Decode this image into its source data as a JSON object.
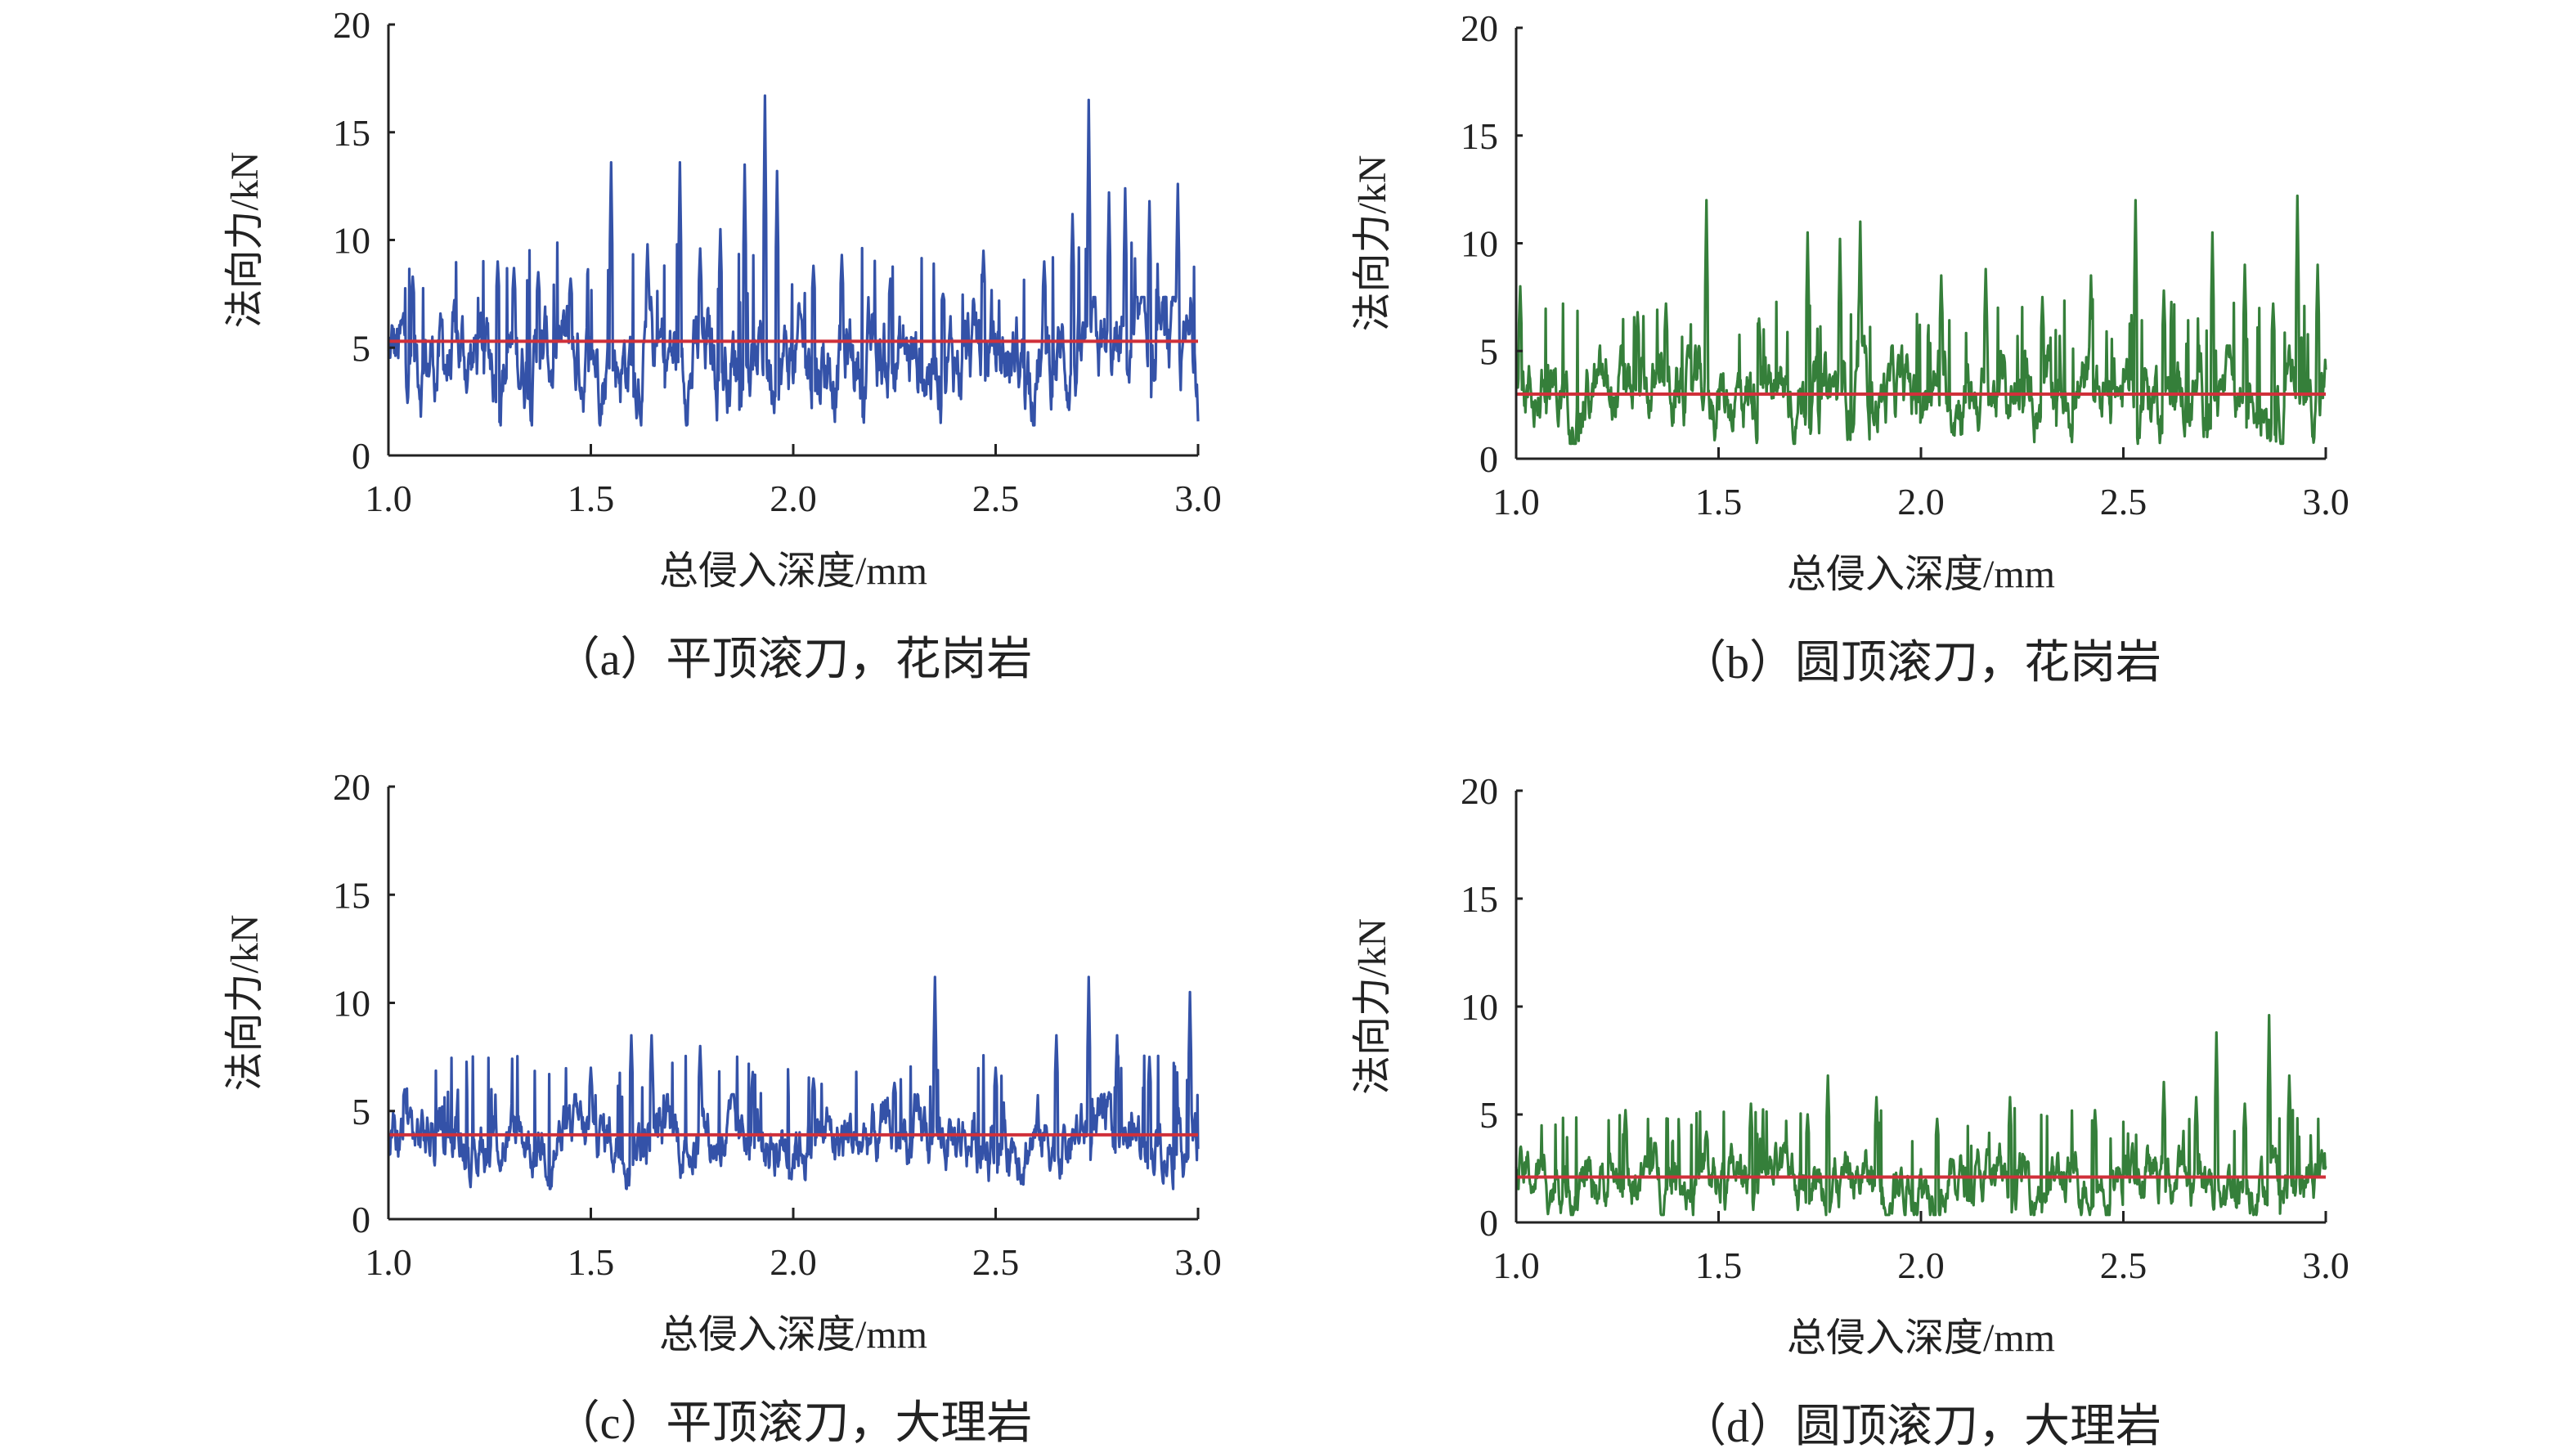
{
  "colors": {
    "blue": "#3452a8",
    "green": "#357f3a",
    "mean_line": "#d0303a",
    "axis": "#222222"
  },
  "chart_data": [
    {
      "type": "line",
      "caption": "（a）平顶滚刀，花岗岩",
      "xlabel": "总侵入深度/mm",
      "ylabel": "法向力/kN",
      "xlim": [
        1.0,
        3.0
      ],
      "ylim": [
        0,
        20
      ],
      "xticks": [
        "1.0",
        "1.5",
        "2.0",
        "2.5",
        "3.0"
      ],
      "yticks": [
        "0",
        "5",
        "10",
        "15",
        "20"
      ],
      "series_color": "blue",
      "mean": 5.3,
      "baseline_range": [
        2.0,
        7.0
      ],
      "peaks": [
        [
          1.06,
          8.3
        ],
        [
          1.27,
          9.0
        ],
        [
          1.31,
          8.7
        ],
        [
          1.37,
          8.5
        ],
        [
          1.45,
          8.2
        ],
        [
          1.55,
          13.6
        ],
        [
          1.64,
          9.8
        ],
        [
          1.72,
          13.6
        ],
        [
          1.77,
          9.6
        ],
        [
          1.82,
          10.5
        ],
        [
          1.88,
          13.5
        ],
        [
          1.93,
          16.7
        ],
        [
          1.96,
          13.2
        ],
        [
          2.05,
          8.8
        ],
        [
          2.12,
          9.3
        ],
        [
          2.24,
          8.2
        ],
        [
          2.37,
          7.5
        ],
        [
          2.47,
          9.5
        ],
        [
          2.62,
          9.0
        ],
        [
          2.69,
          11.2
        ],
        [
          2.73,
          16.5
        ],
        [
          2.78,
          12.2
        ],
        [
          2.82,
          12.4
        ],
        [
          2.88,
          11.8
        ],
        [
          2.95,
          12.6
        ]
      ]
    },
    {
      "type": "line",
      "caption": "（b）圆顶滚刀，花岗岩",
      "xlabel": "总侵入深度/mm",
      "ylabel": "法向力/kN",
      "xlim": [
        1.0,
        3.0
      ],
      "ylim": [
        0,
        20
      ],
      "xticks": [
        "1.0",
        "1.5",
        "2.0",
        "2.5",
        "3.0"
      ],
      "yticks": [
        "0",
        "5",
        "10",
        "15",
        "20"
      ],
      "series_color": "green",
      "mean": 3.0,
      "baseline_range": [
        1.0,
        5.0
      ],
      "peaks": [
        [
          1.01,
          8.0
        ],
        [
          1.3,
          6.8
        ],
        [
          1.37,
          7.2
        ],
        [
          1.47,
          12.0
        ],
        [
          1.6,
          6.5
        ],
        [
          1.72,
          10.5
        ],
        [
          1.8,
          10.2
        ],
        [
          1.85,
          11.0
        ],
        [
          2.05,
          8.5
        ],
        [
          2.16,
          8.8
        ],
        [
          2.3,
          7.5
        ],
        [
          2.42,
          8.5
        ],
        [
          2.53,
          12.0
        ],
        [
          2.6,
          7.8
        ],
        [
          2.72,
          10.5
        ],
        [
          2.8,
          9.0
        ],
        [
          2.87,
          7.2
        ],
        [
          2.93,
          12.2
        ],
        [
          2.98,
          9.0
        ]
      ]
    },
    {
      "type": "line",
      "caption": "（c）平顶滚刀，大理岩",
      "xlabel": "总侵入深度/mm",
      "ylabel": "法向力/kN",
      "xlim": [
        1.0,
        3.0
      ],
      "ylim": [
        0,
        20
      ],
      "xticks": [
        "1.0",
        "1.5",
        "2.0",
        "2.5",
        "3.0"
      ],
      "yticks": [
        "0",
        "5",
        "10",
        "15",
        "20"
      ],
      "series_color": "blue",
      "mean": 3.9,
      "baseline_range": [
        2.0,
        5.5
      ],
      "peaks": [
        [
          1.04,
          6.0
        ],
        [
          1.5,
          7.0
        ],
        [
          1.6,
          8.5
        ],
        [
          1.65,
          8.5
        ],
        [
          1.77,
          8.0
        ],
        [
          1.9,
          6.8
        ],
        [
          2.05,
          6.5
        ],
        [
          2.25,
          6.3
        ],
        [
          2.35,
          11.2
        ],
        [
          2.5,
          7.0
        ],
        [
          2.65,
          8.5
        ],
        [
          2.73,
          11.2
        ],
        [
          2.8,
          8.5
        ],
        [
          2.88,
          7.5
        ],
        [
          2.98,
          10.5
        ]
      ]
    },
    {
      "type": "line",
      "caption": "（d）圆顶滚刀，大理岩",
      "xlabel": "总侵入深度/mm",
      "ylabel": "法向力/kN",
      "xlim": [
        1.0,
        3.0
      ],
      "ylim": [
        0,
        20
      ],
      "xticks": [
        "1.0",
        "1.5",
        "2.0",
        "2.5",
        "3.0"
      ],
      "yticks": [
        "0",
        "5",
        "10",
        "15",
        "20"
      ],
      "series_color": "green",
      "mean": 2.1,
      "baseline_range": [
        0.5,
        3.5
      ],
      "peaks": [
        [
          1.27,
          5.2
        ],
        [
          1.47,
          4.2
        ],
        [
          1.58,
          5.5
        ],
        [
          1.72,
          5.0
        ],
        [
          1.77,
          6.8
        ],
        [
          1.89,
          5.8
        ],
        [
          2.04,
          4.8
        ],
        [
          2.22,
          5.8
        ],
        [
          2.43,
          5.2
        ],
        [
          2.6,
          6.5
        ],
        [
          2.68,
          5.8
        ],
        [
          2.73,
          8.8
        ],
        [
          2.8,
          5.5
        ],
        [
          2.86,
          9.6
        ],
        [
          2.91,
          6.8
        ]
      ]
    }
  ]
}
